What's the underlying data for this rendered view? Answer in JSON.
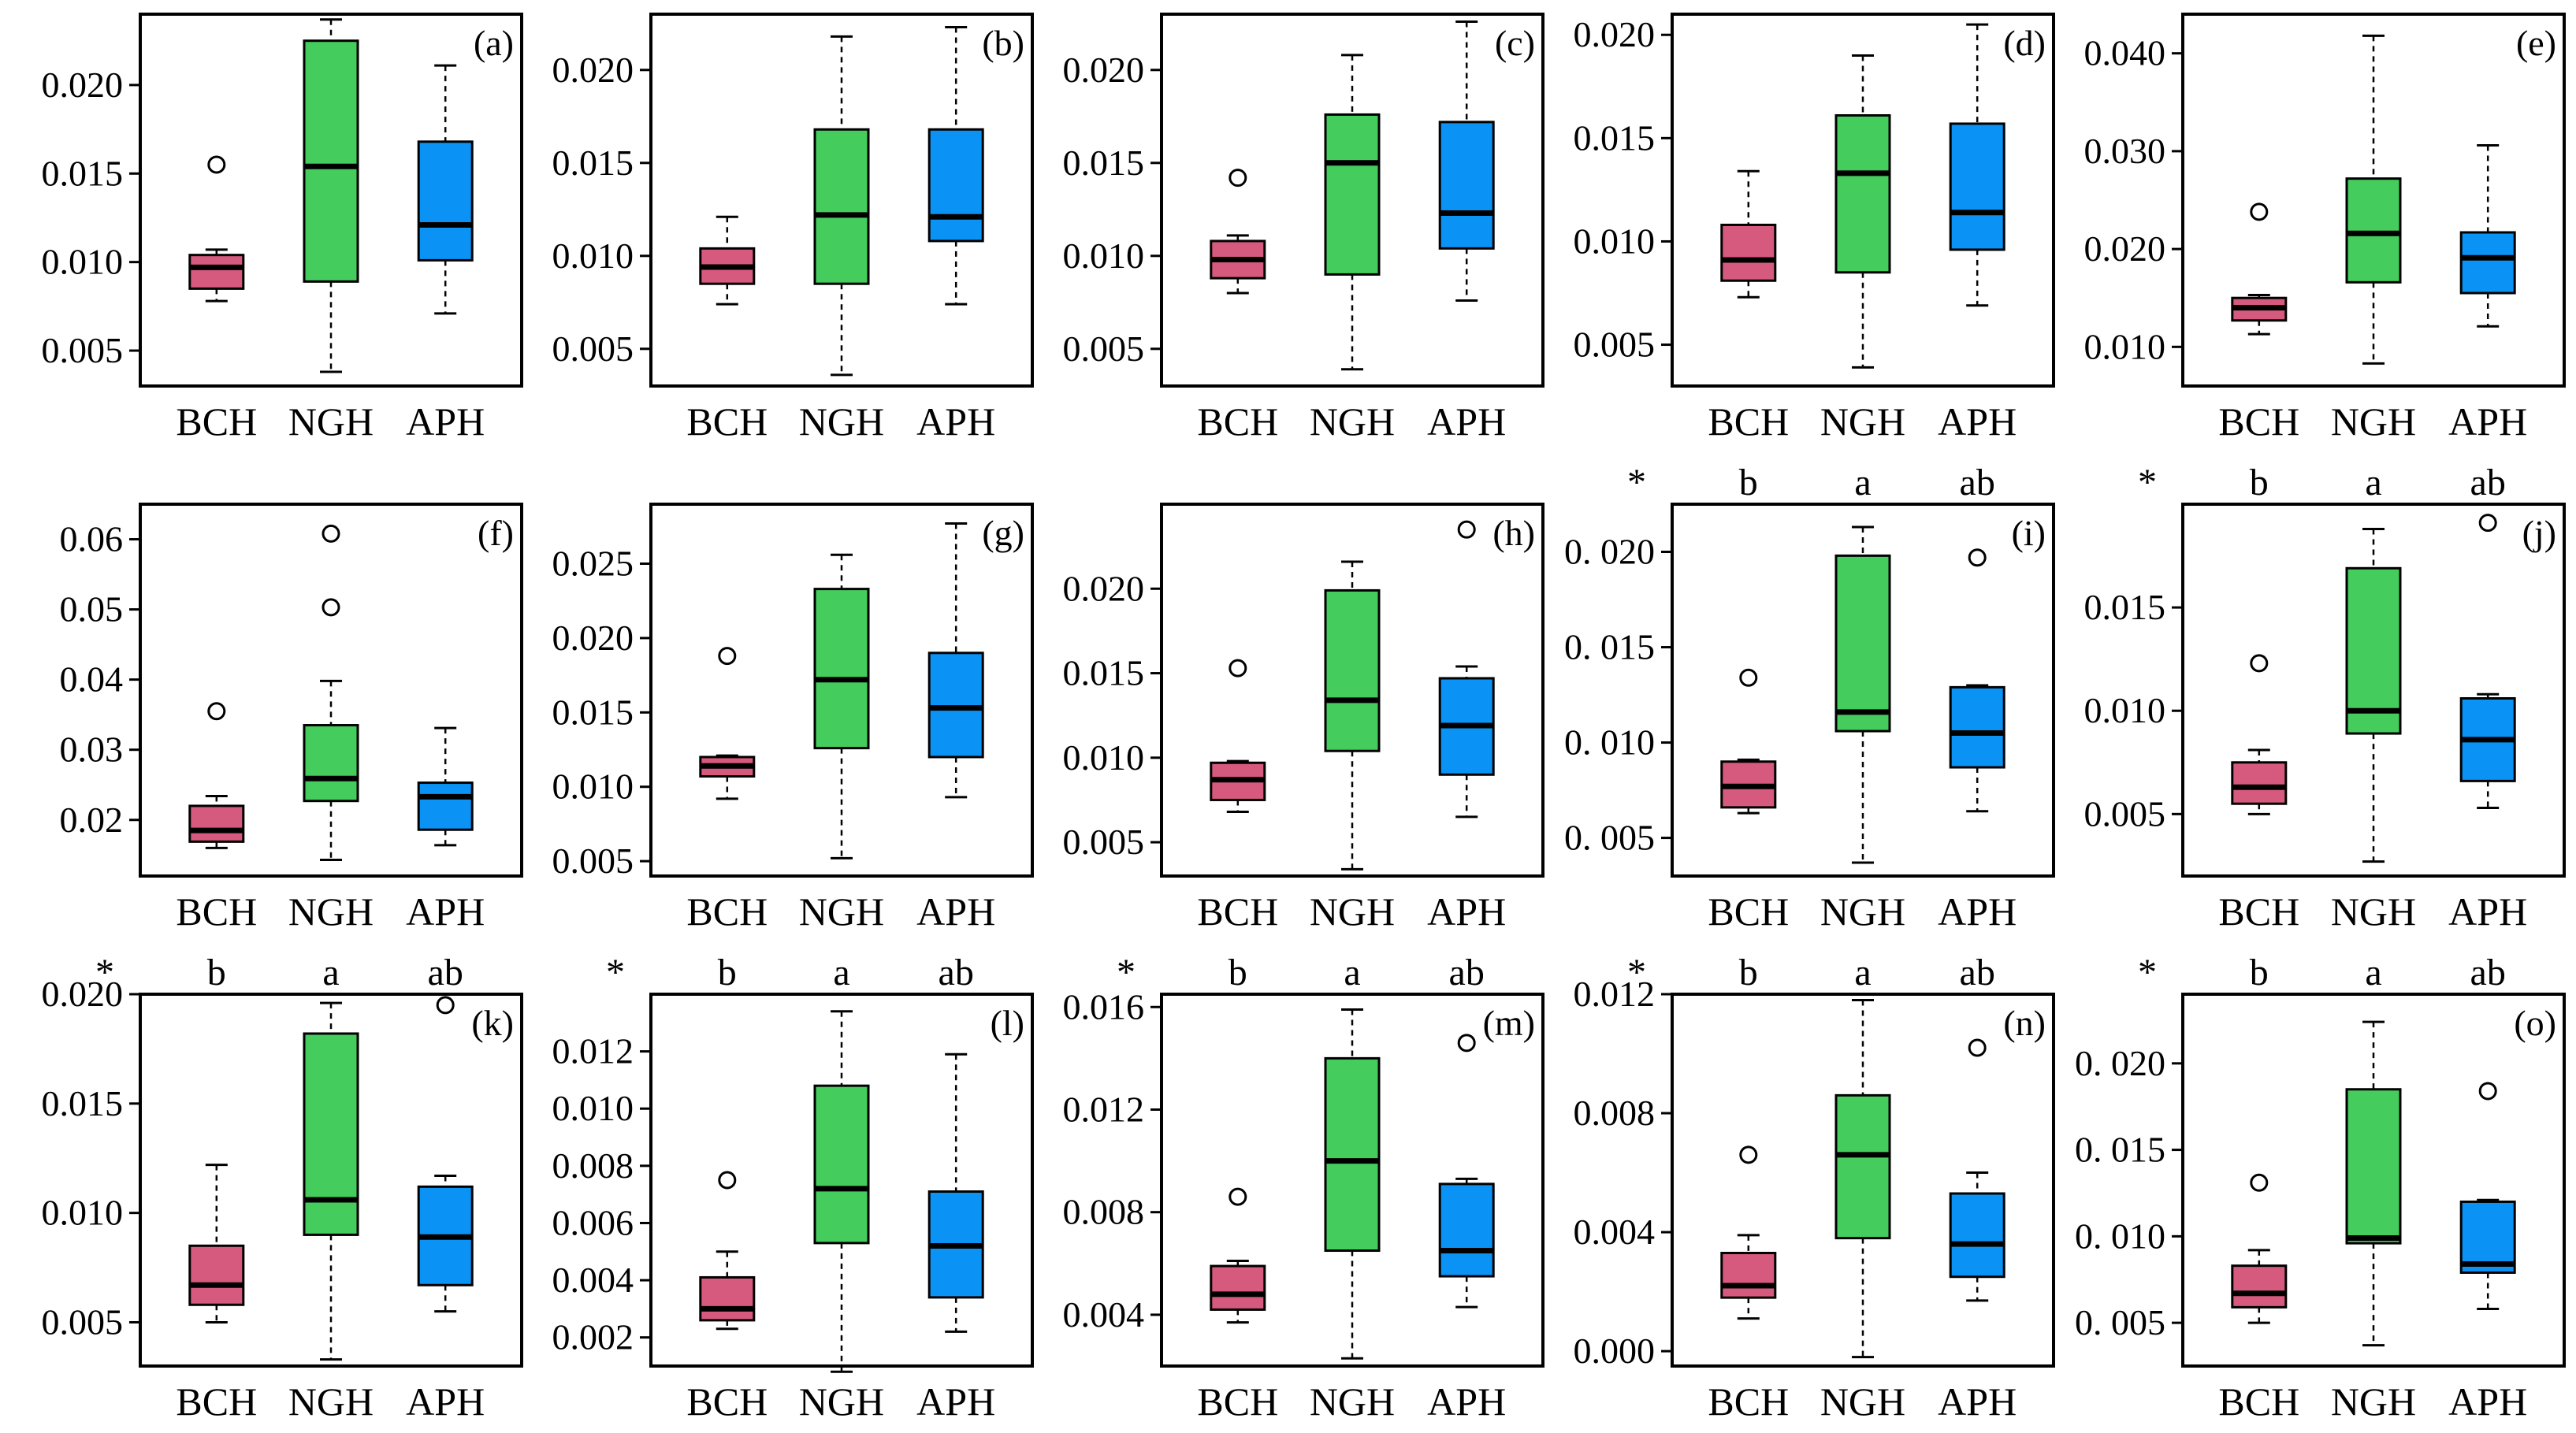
{
  "colors": {
    "BCH": "#d65a7e",
    "NGH": "#44cc5c",
    "APH": "#0a93f5"
  },
  "chart_data": [
    {
      "id": "a",
      "label": "(a)",
      "type": "box",
      "categories": [
        "BCH",
        "NGH",
        "APH"
      ],
      "ylim": [
        0.003,
        0.024
      ],
      "ticks": [
        "0.005",
        "0.010",
        "0.015",
        "0.020"
      ],
      "significance": [],
      "boxes": [
        {
          "min": 0.0078,
          "q1": 0.0085,
          "median": 0.0097,
          "q3": 0.0104,
          "max": 0.0107,
          "outliers": [
            0.0155
          ]
        },
        {
          "min": 0.0038,
          "q1": 0.0089,
          "median": 0.0154,
          "q3": 0.0225,
          "max": 0.0237,
          "outliers": []
        },
        {
          "min": 0.0071,
          "q1": 0.0101,
          "median": 0.0121,
          "q3": 0.0168,
          "max": 0.0211,
          "outliers": []
        }
      ]
    },
    {
      "id": "b",
      "label": "(b)",
      "type": "box",
      "categories": [
        "BCH",
        "NGH",
        "APH"
      ],
      "ylim": [
        0.003,
        0.023
      ],
      "ticks": [
        "0.005",
        "0.010",
        "0.015",
        "0.020"
      ],
      "significance": [],
      "boxes": [
        {
          "min": 0.0074,
          "q1": 0.0085,
          "median": 0.0094,
          "q3": 0.0104,
          "max": 0.0121,
          "outliers": []
        },
        {
          "min": 0.0036,
          "q1": 0.0085,
          "median": 0.0122,
          "q3": 0.0168,
          "max": 0.0218,
          "outliers": []
        },
        {
          "min": 0.0074,
          "q1": 0.0108,
          "median": 0.0121,
          "q3": 0.0168,
          "max": 0.0223,
          "outliers": []
        }
      ]
    },
    {
      "id": "c",
      "label": "(c)",
      "type": "box",
      "categories": [
        "BCH",
        "NGH",
        "APH"
      ],
      "ylim": [
        0.003,
        0.023
      ],
      "ticks": [
        "0.005",
        "0.010",
        "0.015",
        "0.020"
      ],
      "significance": [],
      "boxes": [
        {
          "min": 0.008,
          "q1": 0.0088,
          "median": 0.0098,
          "q3": 0.0108,
          "max": 0.0111,
          "outliers": [
            0.0142
          ]
        },
        {
          "min": 0.0039,
          "q1": 0.009,
          "median": 0.015,
          "q3": 0.0176,
          "max": 0.0208,
          "outliers": []
        },
        {
          "min": 0.0076,
          "q1": 0.0104,
          "median": 0.0123,
          "q3": 0.0172,
          "max": 0.0226,
          "outliers": []
        }
      ]
    },
    {
      "id": "d",
      "label": "(d)",
      "type": "box",
      "categories": [
        "BCH",
        "NGH",
        "APH"
      ],
      "ylim": [
        0.003,
        0.021
      ],
      "ticks": [
        "0.005",
        "0.010",
        "0.015",
        "0.020"
      ],
      "significance": [],
      "boxes": [
        {
          "min": 0.0073,
          "q1": 0.0081,
          "median": 0.0091,
          "q3": 0.0108,
          "max": 0.0134,
          "outliers": []
        },
        {
          "min": 0.0039,
          "q1": 0.0085,
          "median": 0.0133,
          "q3": 0.0161,
          "max": 0.019,
          "outliers": []
        },
        {
          "min": 0.0069,
          "q1": 0.0096,
          "median": 0.0114,
          "q3": 0.0157,
          "max": 0.0205,
          "outliers": []
        }
      ]
    },
    {
      "id": "e",
      "label": "(e)",
      "type": "box",
      "categories": [
        "BCH",
        "NGH",
        "APH"
      ],
      "ylim": [
        0.006,
        0.044
      ],
      "ticks": [
        "0.010",
        "0.020",
        "0.030",
        "0.040"
      ],
      "significance": [],
      "boxes": [
        {
          "min": 0.0113,
          "q1": 0.0127,
          "median": 0.014,
          "q3": 0.015,
          "max": 0.0153,
          "outliers": [
            0.0238
          ]
        },
        {
          "min": 0.0083,
          "q1": 0.0166,
          "median": 0.0216,
          "q3": 0.0272,
          "max": 0.0418,
          "outliers": []
        },
        {
          "min": 0.0121,
          "q1": 0.0155,
          "median": 0.0191,
          "q3": 0.0217,
          "max": 0.0306,
          "outliers": []
        }
      ]
    },
    {
      "id": "f",
      "label": "(f)",
      "type": "box",
      "categories": [
        "BCH",
        "NGH",
        "APH"
      ],
      "ylim": [
        0.012,
        0.065
      ],
      "ticks": [
        "0.02",
        "0.03",
        "0.04",
        "0.05",
        "0.06"
      ],
      "significance": [],
      "boxes": [
        {
          "min": 0.016,
          "q1": 0.0169,
          "median": 0.0185,
          "q3": 0.022,
          "max": 0.0234,
          "outliers": [
            0.0355
          ]
        },
        {
          "min": 0.0143,
          "q1": 0.0227,
          "median": 0.0259,
          "q3": 0.0335,
          "max": 0.0398,
          "outliers": [
            0.0503,
            0.0608
          ]
        },
        {
          "min": 0.0164,
          "q1": 0.0186,
          "median": 0.0233,
          "q3": 0.0253,
          "max": 0.0331,
          "outliers": []
        }
      ]
    },
    {
      "id": "g",
      "label": "(g)",
      "type": "box",
      "categories": [
        "BCH",
        "NGH",
        "APH"
      ],
      "ylim": [
        0.004,
        0.029
      ],
      "ticks": [
        "0.005",
        "0.010",
        "0.015",
        "0.020",
        "0.025"
      ],
      "significance": [],
      "boxes": [
        {
          "min": 0.0092,
          "q1": 0.0107,
          "median": 0.0114,
          "q3": 0.012,
          "max": 0.0121,
          "outliers": [
            0.0188
          ]
        },
        {
          "min": 0.0052,
          "q1": 0.0126,
          "median": 0.0172,
          "q3": 0.0233,
          "max": 0.0256,
          "outliers": []
        },
        {
          "min": 0.0093,
          "q1": 0.012,
          "median": 0.0153,
          "q3": 0.019,
          "max": 0.0277,
          "outliers": []
        }
      ]
    },
    {
      "id": "h",
      "label": "(h)",
      "type": "box",
      "categories": [
        "BCH",
        "NGH",
        "APH"
      ],
      "ylim": [
        0.003,
        0.025
      ],
      "ticks": [
        "0.005",
        "0.010",
        "0.015",
        "0.020"
      ],
      "significance": [],
      "boxes": [
        {
          "min": 0.0068,
          "q1": 0.0075,
          "median": 0.0087,
          "q3": 0.0097,
          "max": 0.0098,
          "outliers": [
            0.0153
          ]
        },
        {
          "min": 0.0034,
          "q1": 0.0104,
          "median": 0.0134,
          "q3": 0.0199,
          "max": 0.0216,
          "outliers": []
        },
        {
          "min": 0.0065,
          "q1": 0.009,
          "median": 0.0119,
          "q3": 0.0147,
          "max": 0.0154,
          "outliers": [
            0.0235
          ]
        }
      ]
    },
    {
      "id": "i",
      "label": "(i)",
      "type": "box",
      "categories": [
        "BCH",
        "NGH",
        "APH"
      ],
      "ylim": [
        0.003,
        0.0225
      ],
      "ticks": [
        "0.005",
        "0.010",
        "0.015",
        "0.020"
      ],
      "tickPrefixSpace": true,
      "significance": [
        "*",
        "b",
        "a",
        "ab"
      ],
      "boxes": [
        {
          "min": 0.0063,
          "q1": 0.0066,
          "median": 0.0077,
          "q3": 0.009,
          "max": 0.0091,
          "outliers": [
            0.0134
          ]
        },
        {
          "min": 0.0037,
          "q1": 0.0106,
          "median": 0.0116,
          "q3": 0.0198,
          "max": 0.0213,
          "outliers": []
        },
        {
          "min": 0.0064,
          "q1": 0.0087,
          "median": 0.0105,
          "q3": 0.0129,
          "max": 0.013,
          "outliers": [
            0.0197
          ]
        }
      ]
    },
    {
      "id": "j",
      "label": "(j)",
      "type": "box",
      "categories": [
        "BCH",
        "NGH",
        "APH"
      ],
      "ylim": [
        0.002,
        0.02
      ],
      "ticks": [
        "0.005",
        "0.010",
        "0.015"
      ],
      "significance": [
        "*",
        "b",
        "a",
        "ab"
      ],
      "boxes": [
        {
          "min": 0.005,
          "q1": 0.0055,
          "median": 0.0063,
          "q3": 0.0075,
          "max": 0.0081,
          "outliers": [
            0.0123
          ]
        },
        {
          "min": 0.0027,
          "q1": 0.0089,
          "median": 0.01,
          "q3": 0.0169,
          "max": 0.0188,
          "outliers": []
        },
        {
          "min": 0.0053,
          "q1": 0.0066,
          "median": 0.0086,
          "q3": 0.0106,
          "max": 0.0108,
          "outliers": [
            0.0191
          ]
        }
      ]
    },
    {
      "id": "k",
      "label": "(k)",
      "type": "box",
      "categories": [
        "BCH",
        "NGH",
        "APH"
      ],
      "ylim": [
        0.003,
        0.02
      ],
      "ticks": [
        "0.005",
        "0.010",
        "0.015",
        "0.020"
      ],
      "significance": [
        "*",
        "b",
        "a",
        "ab"
      ],
      "boxes": [
        {
          "min": 0.005,
          "q1": 0.0058,
          "median": 0.0067,
          "q3": 0.0085,
          "max": 0.0122,
          "outliers": []
        },
        {
          "min": 0.0033,
          "q1": 0.009,
          "median": 0.0106,
          "q3": 0.0182,
          "max": 0.0196,
          "outliers": []
        },
        {
          "min": 0.0055,
          "q1": 0.0067,
          "median": 0.0089,
          "q3": 0.0112,
          "max": 0.0117,
          "outliers": [
            0.0195
          ]
        }
      ]
    },
    {
      "id": "l",
      "label": "(l)",
      "type": "box",
      "categories": [
        "BCH",
        "NGH",
        "APH"
      ],
      "ylim": [
        0.001,
        0.014
      ],
      "ticks": [
        "0.002",
        "0.004",
        "0.006",
        "0.008",
        "0.010",
        "0.012"
      ],
      "significance": [
        "*",
        "b",
        "a",
        "ab"
      ],
      "boxes": [
        {
          "min": 0.0023,
          "q1": 0.0026,
          "median": 0.003,
          "q3": 0.0041,
          "max": 0.005,
          "outliers": [
            0.0075
          ]
        },
        {
          "min": 0.0008,
          "q1": 0.0053,
          "median": 0.0072,
          "q3": 0.0108,
          "max": 0.0134,
          "outliers": []
        },
        {
          "min": 0.0022,
          "q1": 0.0034,
          "median": 0.0052,
          "q3": 0.0071,
          "max": 0.0119,
          "outliers": []
        }
      ]
    },
    {
      "id": "m",
      "label": "(m)",
      "type": "box",
      "categories": [
        "BCH",
        "NGH",
        "APH"
      ],
      "ylim": [
        0.002,
        0.0165
      ],
      "ticks": [
        "0.004",
        "0.008",
        "0.012",
        "0.016"
      ],
      "significance": [
        "*",
        "b",
        "a",
        "ab"
      ],
      "boxes": [
        {
          "min": 0.0037,
          "q1": 0.0042,
          "median": 0.0048,
          "q3": 0.0059,
          "max": 0.0061,
          "outliers": [
            0.0086
          ]
        },
        {
          "min": 0.0023,
          "q1": 0.0065,
          "median": 0.01,
          "q3": 0.014,
          "max": 0.0159,
          "outliers": []
        },
        {
          "min": 0.0043,
          "q1": 0.0055,
          "median": 0.0065,
          "q3": 0.0091,
          "max": 0.0093,
          "outliers": [
            0.0146
          ]
        }
      ]
    },
    {
      "id": "n",
      "label": "(n)",
      "type": "box",
      "categories": [
        "BCH",
        "NGH",
        "APH"
      ],
      "ylim": [
        -0.0005,
        0.012
      ],
      "ticks": [
        "0.000",
        "0.004",
        "0.008",
        "0.012"
      ],
      "significance": [
        "*",
        "b",
        "a",
        "ab"
      ],
      "boxes": [
        {
          "min": 0.0011,
          "q1": 0.0018,
          "median": 0.0022,
          "q3": 0.0033,
          "max": 0.0039,
          "outliers": [
            0.0066
          ]
        },
        {
          "min": -0.0002,
          "q1": 0.0038,
          "median": 0.0066,
          "q3": 0.0086,
          "max": 0.0118,
          "outliers": []
        },
        {
          "min": 0.0017,
          "q1": 0.0025,
          "median": 0.0036,
          "q3": 0.0053,
          "max": 0.006,
          "outliers": [
            0.0102
          ]
        }
      ]
    },
    {
      "id": "o",
      "label": "(o)",
      "type": "box",
      "categories": [
        "BCH",
        "NGH",
        "APH"
      ],
      "ylim": [
        0.0025,
        0.024
      ],
      "ticks": [
        "0.005",
        "0.010",
        "0.015",
        "0.020"
      ],
      "tickPrefixSpace": true,
      "significance": [
        "*",
        "b",
        "a",
        "ab"
      ],
      "boxes": [
        {
          "min": 0.005,
          "q1": 0.0059,
          "median": 0.0067,
          "q3": 0.0083,
          "max": 0.0092,
          "outliers": [
            0.0131
          ]
        },
        {
          "min": 0.0037,
          "q1": 0.0096,
          "median": 0.0099,
          "q3": 0.0185,
          "max": 0.0224,
          "outliers": []
        },
        {
          "min": 0.0058,
          "q1": 0.0079,
          "median": 0.0084,
          "q3": 0.012,
          "max": 0.0121,
          "outliers": [
            0.0184
          ]
        }
      ]
    }
  ]
}
